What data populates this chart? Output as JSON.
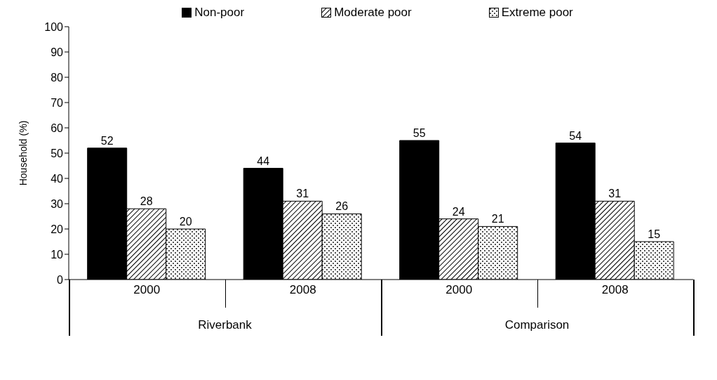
{
  "chart_data": {
    "type": "bar",
    "ylabel": "Household (%)",
    "categories": [
      "2000",
      "2008",
      "2000",
      "2008"
    ],
    "series": [
      {
        "name": "Non-poor",
        "color": "#000000",
        "values": [
          52,
          44,
          55,
          54
        ]
      },
      {
        "name": "Moderate poor",
        "color": "#000000",
        "values": [
          28,
          31,
          24,
          31
        ]
      },
      {
        "name": "Extreme poor",
        "color": "#000000",
        "values": [
          20,
          26,
          21,
          15
        ]
      }
    ],
    "ylim": [
      0,
      100
    ],
    "yticks": [
      0,
      10,
      20,
      30,
      40,
      50,
      60,
      70,
      80,
      90,
      100
    ],
    "legend": "top",
    "data_labels": true,
    "annotations": [
      "Riverbank",
      "Comparison"
    ]
  }
}
